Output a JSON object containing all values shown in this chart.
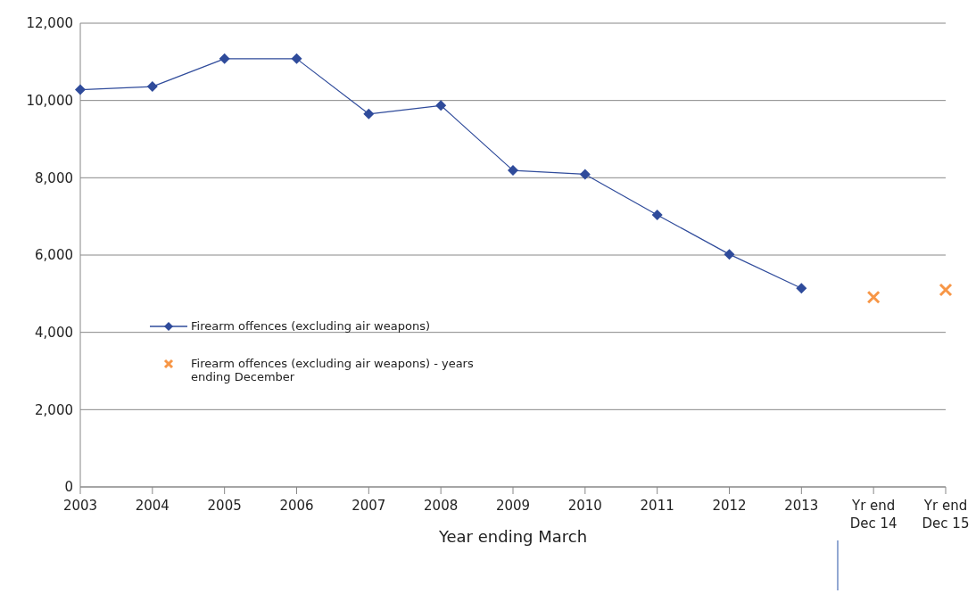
{
  "chart_data": {
    "type": "line",
    "xlabel": "Year ending March",
    "categories": [
      "2003",
      "2004",
      "2005",
      "2006",
      "2007",
      "2008",
      "2009",
      "2010",
      "2011",
      "2012",
      "2013",
      "Yr end Dec 14",
      "Yr end Dec 15"
    ],
    "series": [
      {
        "name": "Firearm offences (excluding air weapons)",
        "color": "#2f4b9b",
        "marker": "diamond",
        "values": [
          10280,
          10360,
          11080,
          11080,
          9650,
          9870,
          8190,
          8090,
          7040,
          6020,
          5140,
          null,
          null
        ]
      },
      {
        "name": "Firearm offences (excluding air weapons)  - years ending December",
        "type": "scatter",
        "color": "#f79646",
        "marker": "cross",
        "values": [
          null,
          null,
          null,
          null,
          null,
          null,
          null,
          null,
          null,
          null,
          null,
          4910,
          5100
        ]
      }
    ],
    "ylim": [
      0,
      12000
    ],
    "yticks": [
      0,
      {
        "value": 2000,
        "label": "2,000"
      },
      {
        "value": 4000,
        "label": "4,000"
      },
      {
        "value": 6000,
        "label": "6,000"
      },
      {
        "value": 8000,
        "label": "8,000"
      },
      {
        "value": 10000,
        "label": "10,000"
      },
      {
        "value": 12000,
        "label": "12,000"
      }
    ],
    "grid": "y",
    "legend": "left"
  }
}
